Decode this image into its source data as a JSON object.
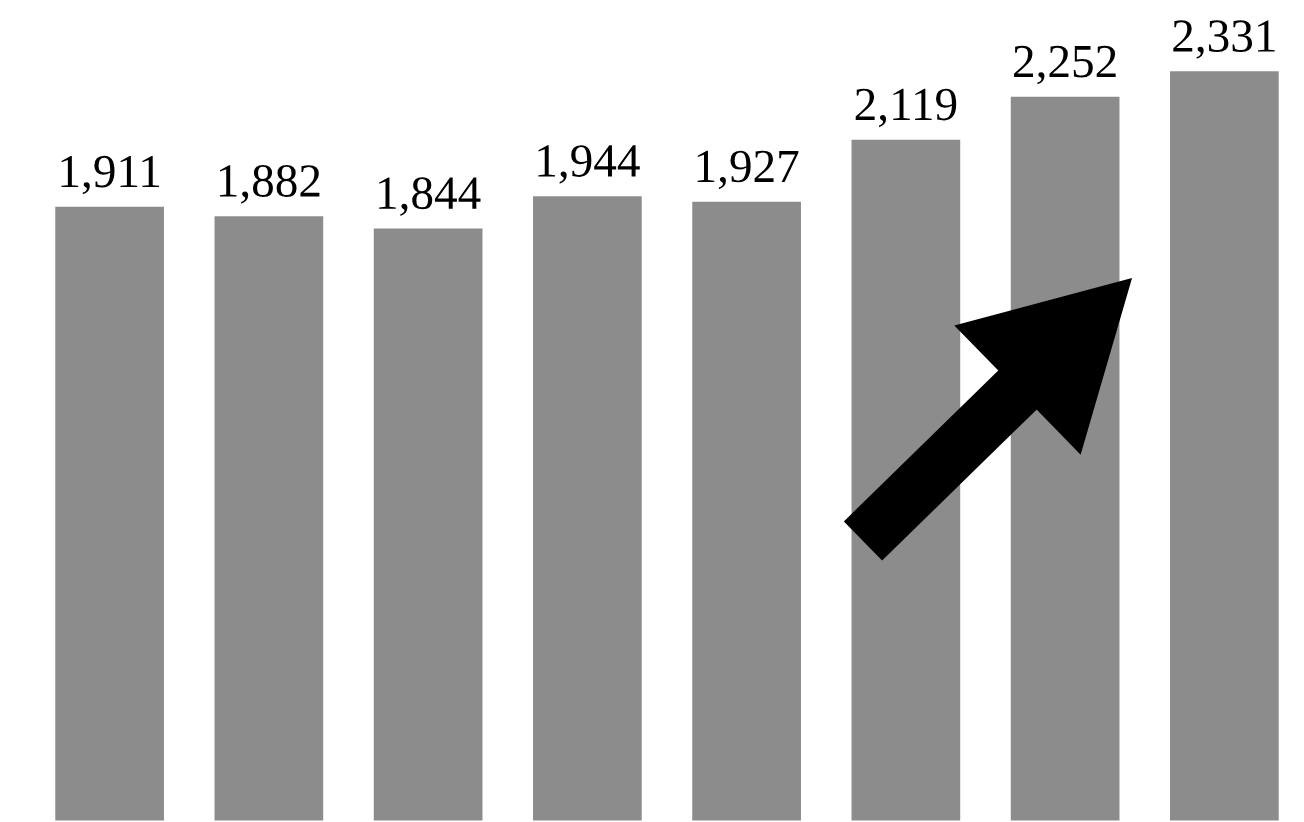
{
  "chart_data": {
    "type": "bar",
    "categories": [
      null,
      null,
      null,
      null,
      null,
      null,
      null,
      null
    ],
    "values": [
      1911,
      1882,
      1844,
      1944,
      1927,
      2119,
      2252,
      2331
    ],
    "value_labels": [
      "1,911",
      "1,882",
      "1,844",
      "1,944",
      "1,927",
      "2,119",
      "2,252",
      "2,331"
    ],
    "color": "#8c8c8c",
    "tick_labels": false,
    "grid": false,
    "legend": false
  }
}
